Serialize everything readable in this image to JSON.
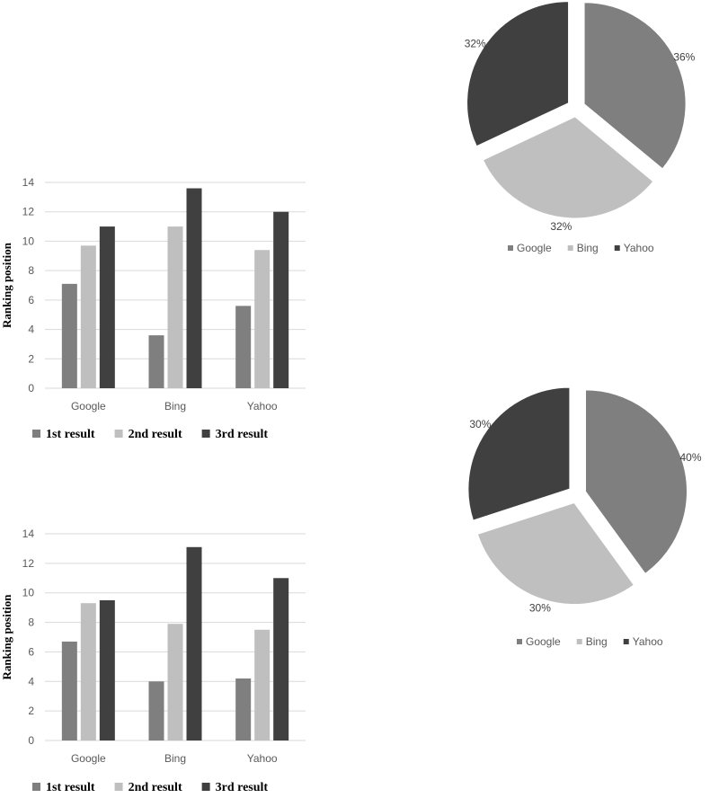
{
  "chart_data": [
    {
      "type": "bar",
      "categories": [
        "Google",
        "Bing",
        "Yahoo"
      ],
      "ylabel": "Ranking position",
      "ylim": [
        0,
        14
      ],
      "yticks": [
        0,
        2,
        4,
        6,
        8,
        10,
        12,
        14
      ],
      "grid": true,
      "legend_position": "bottom",
      "series": [
        {
          "name": "1st result",
          "values": [
            7.1,
            3.6,
            5.6
          ],
          "color": "#7f7f7f"
        },
        {
          "name": "2nd result",
          "values": [
            9.7,
            11.0,
            9.4
          ],
          "color": "#bfbfbf"
        },
        {
          "name": "3rd result",
          "values": [
            11.0,
            13.6,
            12.0
          ],
          "color": "#404040"
        }
      ]
    },
    {
      "type": "bar",
      "categories": [
        "Google",
        "Bing",
        "Yahoo"
      ],
      "ylabel": "Ranking position",
      "ylim": [
        0,
        14
      ],
      "yticks": [
        0,
        2,
        4,
        6,
        8,
        10,
        12,
        14
      ],
      "grid": true,
      "legend_position": "bottom",
      "series": [
        {
          "name": "1st result",
          "values": [
            6.7,
            4.0,
            4.2
          ],
          "color": "#7f7f7f"
        },
        {
          "name": "2nd result",
          "values": [
            9.3,
            7.9,
            7.5
          ],
          "color": "#bfbfbf"
        },
        {
          "name": "3rd result",
          "values": [
            9.5,
            13.1,
            11.0
          ],
          "color": "#404040"
        }
      ]
    },
    {
      "type": "pie",
      "legend_position": "bottom",
      "slices": [
        {
          "name": "Google",
          "value": 36,
          "label": "36%",
          "color": "#7f7f7f"
        },
        {
          "name": "Bing",
          "value": 32,
          "label": "32%",
          "color": "#bfbfbf"
        },
        {
          "name": "Yahoo",
          "value": 32,
          "label": "32%",
          "color": "#404040"
        }
      ]
    },
    {
      "type": "pie",
      "legend_position": "bottom",
      "slices": [
        {
          "name": "Google",
          "value": 40,
          "label": "40%",
          "color": "#7f7f7f"
        },
        {
          "name": "Bing",
          "value": 30,
          "label": "30%",
          "color": "#bfbfbf"
        },
        {
          "name": "Yahoo",
          "value": 30,
          "label": "30%",
          "color": "#404040"
        }
      ]
    }
  ]
}
